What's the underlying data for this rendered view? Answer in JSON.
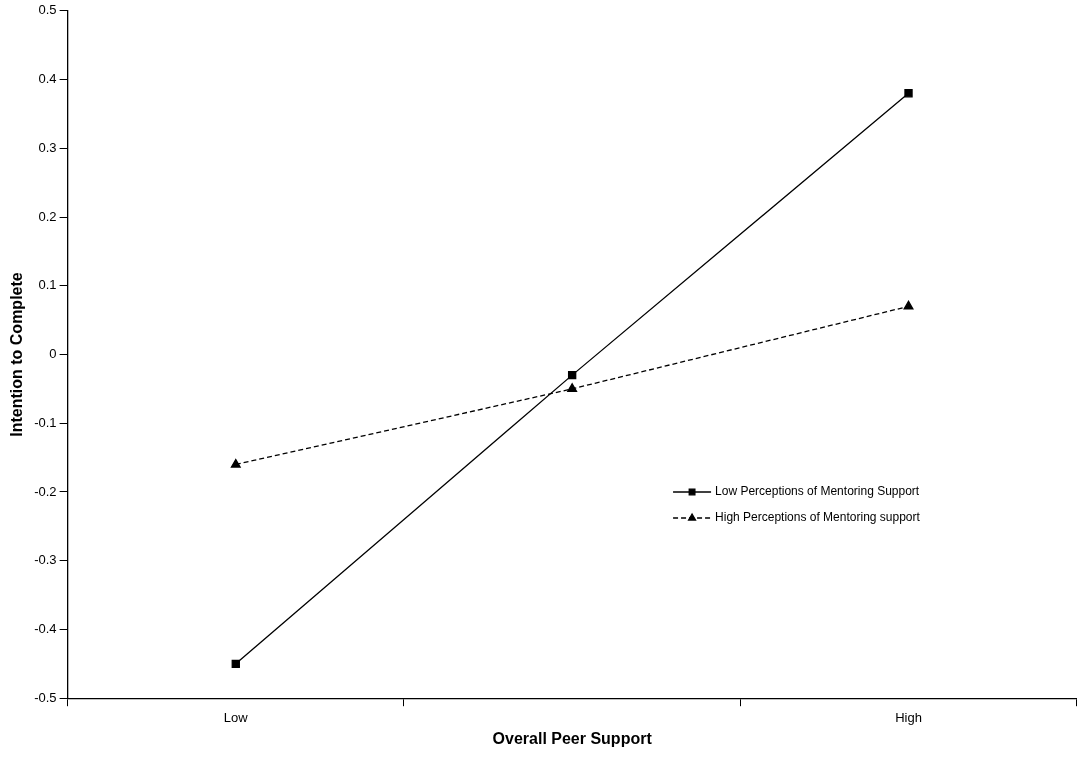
{
  "chart_data": {
    "type": "line",
    "xlabel": "Overall Peer Support",
    "ylabel": "Intention to Complete",
    "categories": [
      "Low",
      null,
      "High"
    ],
    "series": [
      {
        "name": "Low Perceptions of Mentoring Support",
        "color": "#000000",
        "values": [
          -0.45,
          -0.03,
          0.38
        ],
        "marker": "square",
        "line_style": "solid"
      },
      {
        "name": "High Perceptions of Mentoring support",
        "color": "#000000",
        "values": [
          -0.16,
          -0.05,
          0.07
        ],
        "marker": "triangle",
        "line_style": "dashed"
      }
    ],
    "ylim": [
      -0.5,
      0.5
    ],
    "yticks": [
      -0.5,
      -0.4,
      -0.3,
      -0.2,
      -0.1,
      0,
      0.1,
      0.2,
      0.3,
      0.4,
      0.5
    ],
    "grid": false,
    "legend": "right"
  }
}
